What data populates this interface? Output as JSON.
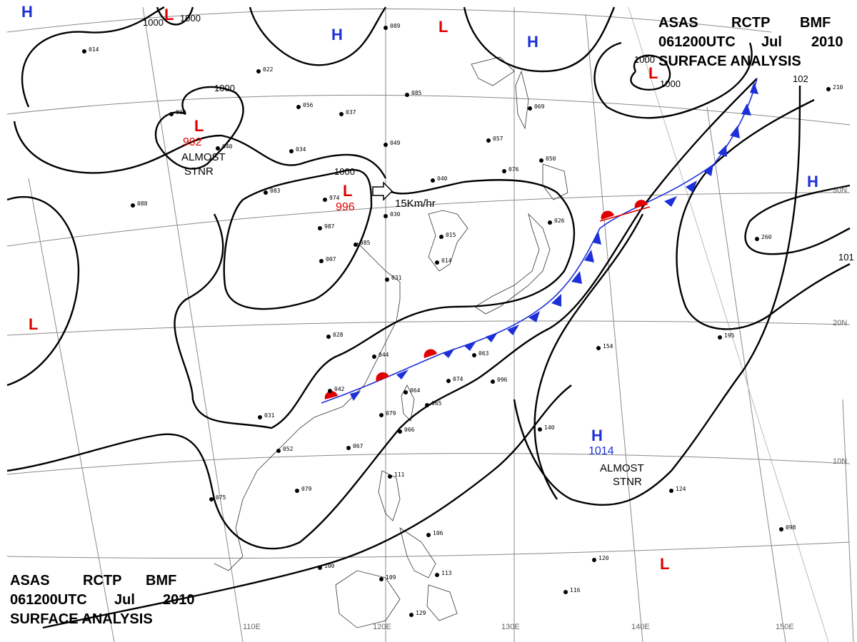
{
  "header_top": {
    "line1": [
      "ASAS",
      "RCTP",
      "BMF"
    ],
    "line2": [
      "061200UTC",
      "Jul",
      "2010"
    ],
    "line3": "SURFACE ANALYSIS"
  },
  "header_bottom": {
    "line1": [
      "ASAS",
      "RCTP",
      "BMF"
    ],
    "line2": [
      "061200UTC",
      "Jul",
      "2010"
    ],
    "line3": "SURFACE ANALYSIS"
  },
  "lon_labels": [
    "110E",
    "120E",
    "130E",
    "140E",
    "150E"
  ],
  "lat_labels": [
    "30N",
    "20N",
    "10N"
  ],
  "pressure_centers": [
    {
      "type": "L",
      "color": "#e00000",
      "value": "992"
    },
    {
      "type": "L",
      "color": "#e00000",
      "value": "996"
    },
    {
      "type": "H",
      "color": "#1c2fd8",
      "value": "1014"
    },
    {
      "type": "L",
      "color": "#e00000",
      "value": ""
    },
    {
      "type": "L",
      "color": "#e00000",
      "value": ""
    },
    {
      "type": "L",
      "color": "#e00000",
      "value": ""
    },
    {
      "type": "L",
      "color": "#e00000",
      "value": ""
    },
    {
      "type": "L",
      "color": "#e00000",
      "value": ""
    },
    {
      "type": "H",
      "color": "#1c2fd8",
      "value": ""
    },
    {
      "type": "H",
      "color": "#1c2fd8",
      "value": ""
    },
    {
      "type": "H",
      "color": "#1c2fd8",
      "value": ""
    },
    {
      "type": "H",
      "color": "#1c2fd8",
      "value": ""
    }
  ],
  "annotations": {
    "stnr1_a": "ALMOST",
    "stnr1_b": "STNR",
    "stnr2_a": "ALMOST",
    "stnr2_b": "STNR",
    "motion": "15Km/hr"
  },
  "isobar_labels": [
    "1000",
    "1000",
    "1000",
    "1000",
    "1000",
    "1000",
    "1000",
    "102",
    "101"
  ],
  "station_samples": [
    "014",
    "030",
    "040",
    "083",
    "974",
    "987",
    "007",
    "985",
    "030",
    "015",
    "014",
    "031",
    "028",
    "044",
    "042",
    "064",
    "065",
    "079",
    "066",
    "067",
    "063",
    "074",
    "096",
    "075",
    "079",
    "052",
    "031",
    "111",
    "106",
    "100",
    "109",
    "113",
    "129",
    "116",
    "120",
    "124",
    "098",
    "154",
    "140",
    "195",
    "260",
    "210",
    "057",
    "076",
    "050",
    "069",
    "040",
    "049",
    "085",
    "089",
    "037",
    "056",
    "022",
    "034",
    "026",
    "088"
  ],
  "colors": {
    "low": "#e00000",
    "high": "#1c2fd8",
    "front_cold": "#1c2fd8",
    "front_warm": "#e00000"
  }
}
